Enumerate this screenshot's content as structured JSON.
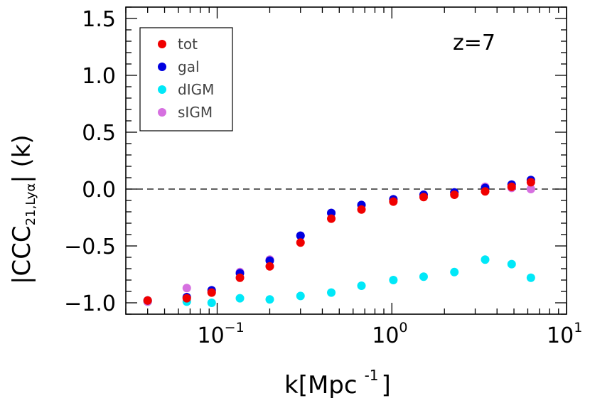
{
  "chart_data": {
    "type": "scatter",
    "title": "",
    "annotation": "z=7",
    "xlabel": {
      "main": "k[Mpc",
      "sup": "-1",
      "close": "]"
    },
    "ylabel": {
      "prefix": "|CCC",
      "sub": "21,Lyα",
      "suffix": "| (k)"
    },
    "xscale": "log",
    "xlim": [
      0.03,
      10
    ],
    "ylim": [
      -1.1,
      1.6
    ],
    "yticks": [
      -1.0,
      -0.5,
      0.0,
      0.5,
      1.0,
      1.5
    ],
    "ytick_labels": [
      "-1.0",
      "-0.5",
      "0.0",
      "0.5",
      "1.0",
      "1.5"
    ],
    "xticks": [
      0.1,
      1,
      10
    ],
    "xtick_labels": [
      {
        "base": "10",
        "exp": "-1"
      },
      {
        "base": "10",
        "exp": "0"
      },
      {
        "base": "10",
        "exp": "1"
      }
    ],
    "reference_line": {
      "y": 0.0,
      "style": "dashed"
    },
    "legend_position": "top-left",
    "grid": false,
    "x": [
      0.04,
      0.067,
      0.093,
      0.135,
      0.2,
      0.3,
      0.45,
      0.67,
      1.02,
      1.52,
      2.28,
      3.42,
      4.85,
      6.25
    ],
    "series": [
      {
        "name": "dIGM",
        "color": "#00e8f8",
        "y": [
          -0.99,
          -0.99,
          -1.0,
          -0.96,
          -0.97,
          -0.94,
          -0.91,
          -0.85,
          -0.8,
          -0.77,
          -0.73,
          -0.62,
          -0.66,
          -0.78
        ]
      },
      {
        "name": "sIGM",
        "color": "#d670e0",
        "y": [
          -0.99,
          -0.87,
          -0.9,
          -0.73,
          -0.62,
          -0.41,
          -0.21,
          -0.14,
          -0.09,
          -0.05,
          -0.03,
          0.02,
          0.01,
          0.0
        ]
      },
      {
        "name": "gal",
        "color": "#0000e0",
        "y": [
          -0.98,
          -0.95,
          -0.89,
          -0.74,
          -0.63,
          -0.41,
          -0.21,
          -0.14,
          -0.09,
          -0.05,
          -0.03,
          0.01,
          0.04,
          0.08
        ]
      },
      {
        "name": "tot",
        "color": "#f00000",
        "y": [
          -0.98,
          -0.96,
          -0.91,
          -0.78,
          -0.68,
          -0.47,
          -0.26,
          -0.18,
          -0.11,
          -0.07,
          -0.05,
          -0.02,
          0.02,
          0.06
        ]
      }
    ],
    "legend_order": [
      "tot",
      "gal",
      "dIGM",
      "sIGM"
    ]
  }
}
